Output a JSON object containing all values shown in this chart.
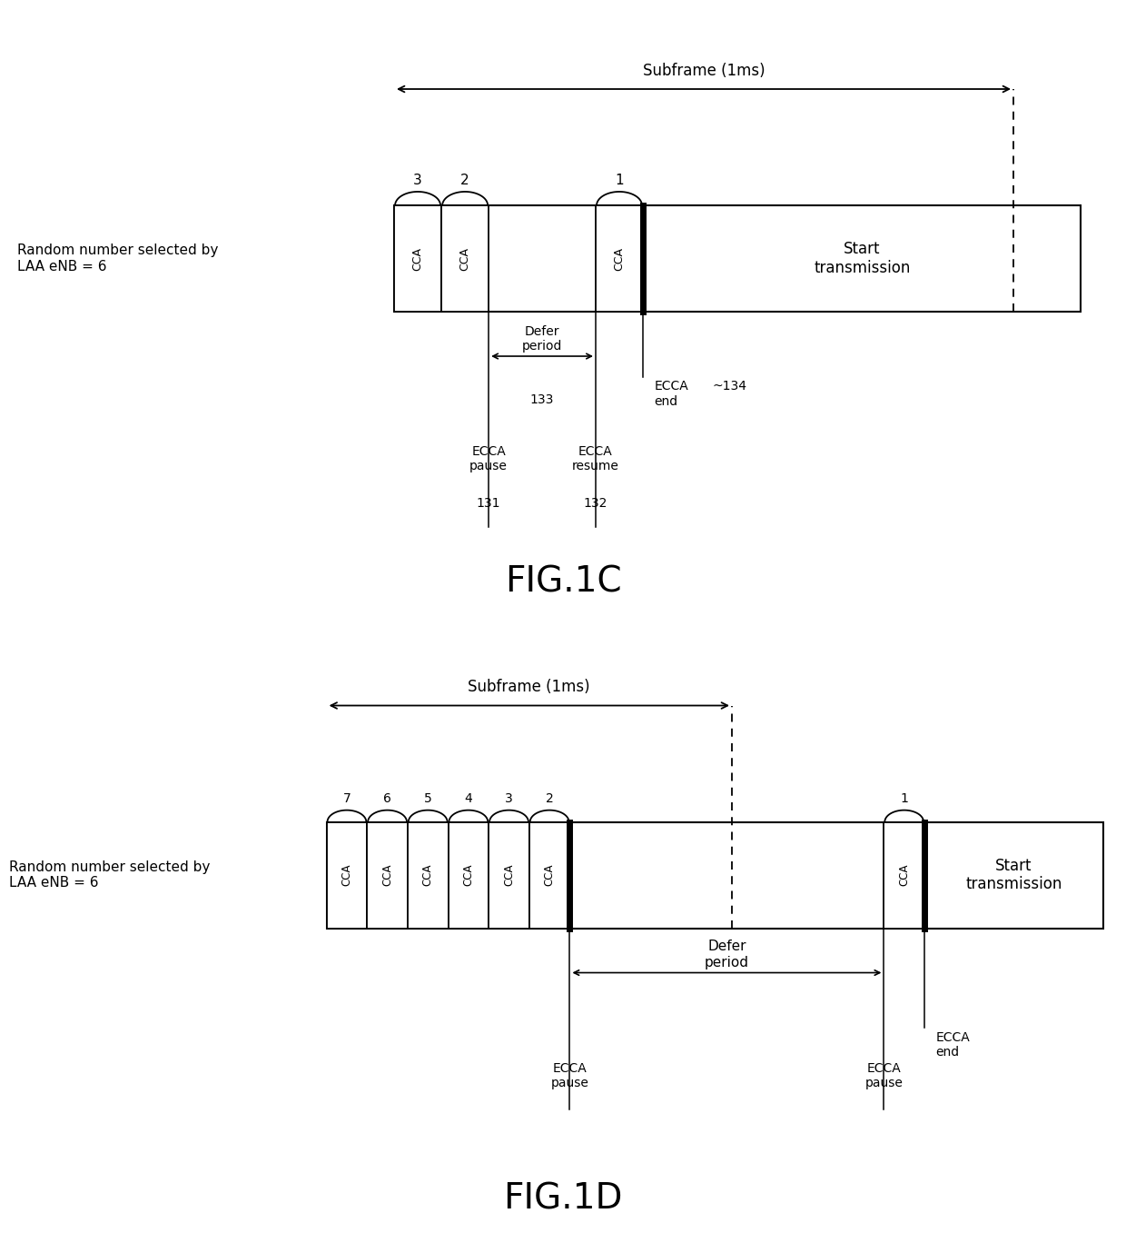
{
  "bg_color": "#ffffff",
  "fig1c": {
    "title": "FIG.1C",
    "subframe_label": "Subframe (1ms)",
    "random_label": "Random number selected by\nLAA eNB = 6",
    "start_transmission": "Start\ntransmission",
    "defer_period_label": "Defer\nperiod",
    "defer_num": "133",
    "ecca_pause_label": "ECCA\npause",
    "ecca_pause_num": "131",
    "ecca_resume_label": "ECCA\nresume",
    "ecca_resume_num": "132",
    "ecca_end_label": "ECCA\nend",
    "ecca_end_num": "~134"
  },
  "fig1d": {
    "title": "FIG.1D",
    "subframe_label": "Subframe (1ms)",
    "random_label": "Random number selected by\nLAA eNB = 6",
    "start_transmission": "Start\ntransmission",
    "defer_period_label": "Defer\nperiod",
    "ecca_pause1_label": "ECCA\npause",
    "ecca_pause2_label": "ECCA\npause",
    "ecca_end_label": "ECCA\nend"
  }
}
